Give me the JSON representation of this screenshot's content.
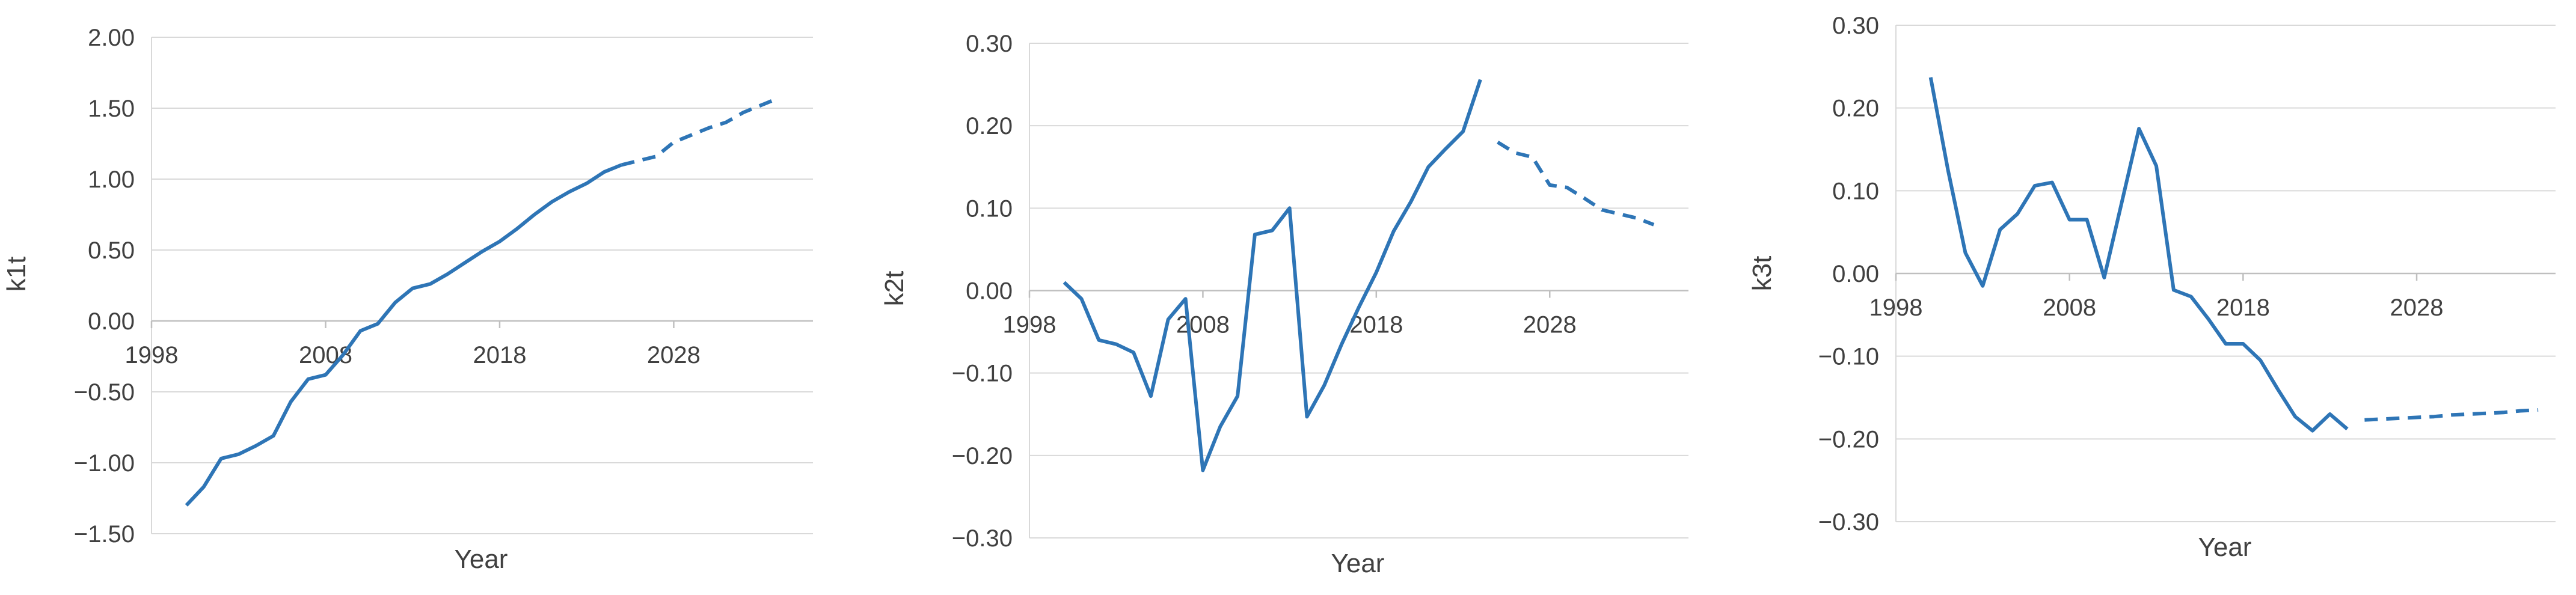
{
  "chart_data": [
    {
      "type": "line",
      "xlabel": "Year",
      "ylabel": "k1t",
      "xlim": [
        1998,
        2036
      ],
      "xticks": [
        1998,
        2008,
        2018,
        2028
      ],
      "ylim": [
        -1.5,
        2.0
      ],
      "yticks": [
        "2.00",
        "1.50",
        "1.00",
        "0.50",
        "0.00",
        "−0.50",
        "−1.00",
        "−1.50"
      ],
      "ytick_values": [
        2.0,
        1.5,
        1.0,
        0.5,
        0.0,
        -0.5,
        -1.0,
        -1.5
      ],
      "grid": true,
      "line_color": "#2e75b6",
      "series": [
        {
          "style": "solid",
          "x": [
            2000,
            2001,
            2002,
            2003,
            2004,
            2005,
            2006,
            2007,
            2008,
            2009,
            2010,
            2011,
            2012,
            2013,
            2014,
            2015,
            2016,
            2017,
            2018,
            2019,
            2020,
            2021,
            2022,
            2023,
            2024,
            2025
          ],
          "y": [
            -1.3,
            -1.17,
            -0.97,
            -0.94,
            -0.88,
            -0.81,
            -0.57,
            -0.41,
            -0.38,
            -0.24,
            -0.07,
            -0.02,
            0.13,
            0.23,
            0.26,
            0.33,
            0.41,
            0.49,
            0.56,
            0.65,
            0.75,
            0.84,
            0.91,
            0.97,
            1.05,
            1.1
          ]
        },
        {
          "style": "dashed",
          "x": [
            2025,
            2026,
            2027,
            2028,
            2029,
            2030,
            2031,
            2032,
            2033,
            2034
          ],
          "y": [
            1.1,
            1.13,
            1.16,
            1.26,
            1.31,
            1.36,
            1.4,
            1.47,
            1.52,
            1.57
          ]
        }
      ]
    },
    {
      "type": "line",
      "xlabel": "Year",
      "ylabel": "k2t",
      "xlim": [
        1998,
        2036
      ],
      "xticks": [
        1998,
        2008,
        2018,
        2028
      ],
      "ylim": [
        -0.3,
        0.3
      ],
      "yticks": [
        "0.30",
        "0.20",
        "0.10",
        "0.00",
        "−0.10",
        "−0.20",
        "−0.30"
      ],
      "ytick_values": [
        0.3,
        0.2,
        0.1,
        0.0,
        -0.1,
        -0.2,
        -0.3
      ],
      "grid": true,
      "line_color": "#2e75b6",
      "series": [
        {
          "style": "solid",
          "x": [
            2000,
            2001,
            2002,
            2003,
            2004,
            2005,
            2006,
            2007,
            2008,
            2009,
            2010,
            2011,
            2012,
            2013,
            2014,
            2015,
            2016,
            2017,
            2018,
            2019,
            2020,
            2021,
            2022,
            2023,
            2024
          ],
          "y": [
            0.01,
            -0.01,
            -0.06,
            -0.065,
            -0.075,
            -0.128,
            -0.035,
            -0.01,
            -0.218,
            -0.165,
            -0.128,
            0.068,
            0.073,
            0.1,
            -0.153,
            -0.115,
            -0.065,
            -0.02,
            0.022,
            0.072,
            0.108,
            0.15,
            0.172,
            0.193,
            0.256
          ]
        },
        {
          "style": "dashed",
          "x": [
            2025,
            2026,
            2027,
            2028,
            2029,
            2030,
            2031,
            2032,
            2033,
            2034
          ],
          "y": [
            0.18,
            0.167,
            0.162,
            0.128,
            0.125,
            0.112,
            0.098,
            0.093,
            0.088,
            0.08
          ]
        }
      ]
    },
    {
      "type": "line",
      "xlabel": "Year",
      "ylabel": "k3t",
      "xlim": [
        1998,
        2036
      ],
      "xticks": [
        1998,
        2008,
        2018,
        2028
      ],
      "ylim": [
        -0.3,
        0.3
      ],
      "yticks": [
        "0.30",
        "0.20",
        "0.10",
        "0.00",
        "−0.10",
        "−0.20",
        "−0.30"
      ],
      "ytick_values": [
        0.3,
        0.2,
        0.1,
        0.0,
        -0.1,
        -0.2,
        -0.3
      ],
      "grid": true,
      "line_color": "#2e75b6",
      "series": [
        {
          "style": "solid",
          "x": [
            2000,
            2001,
            2002,
            2003,
            2004,
            2005,
            2006,
            2007,
            2008,
            2009,
            2010,
            2011,
            2012,
            2013,
            2014,
            2015,
            2016,
            2017,
            2018,
            2019,
            2020,
            2021,
            2022,
            2023,
            2024
          ],
          "y": [
            0.237,
            0.125,
            0.025,
            -0.015,
            0.053,
            0.072,
            0.106,
            0.11,
            0.065,
            0.065,
            -0.005,
            0.085,
            0.175,
            0.13,
            -0.02,
            -0.028,
            -0.055,
            -0.085,
            -0.085,
            -0.105,
            -0.14,
            -0.173,
            -0.19,
            -0.17,
            -0.188
          ]
        },
        {
          "style": "dashed",
          "x": [
            2025,
            2026,
            2027,
            2028,
            2029,
            2030,
            2031,
            2032,
            2033,
            2034,
            2035
          ],
          "y": [
            -0.177,
            -0.176,
            -0.175,
            -0.174,
            -0.173,
            -0.171,
            -0.17,
            -0.169,
            -0.168,
            -0.166,
            -0.165
          ]
        }
      ]
    }
  ]
}
